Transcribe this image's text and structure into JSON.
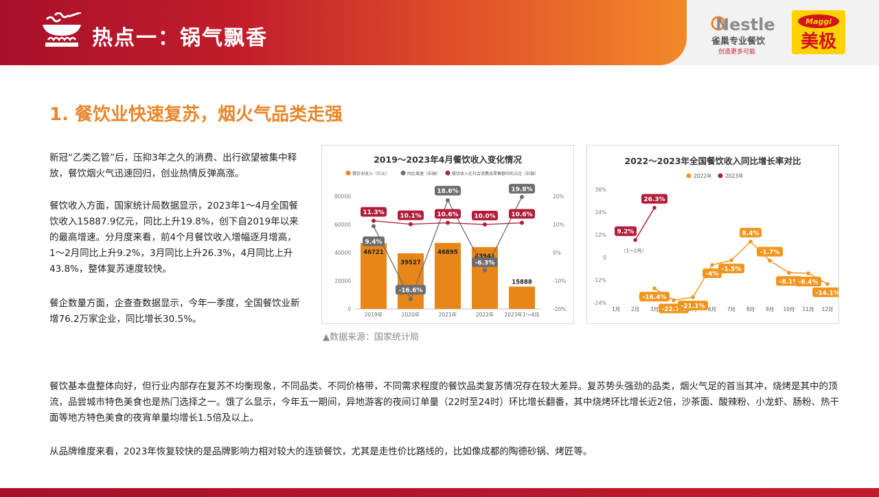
{
  "header": {
    "title": "热点一：锅气飘香",
    "nestle_logo": {
      "brand": "Nestle",
      "line1": "雀巢专业餐饮",
      "line2": "创造更多可能"
    },
    "maggi_logo": {
      "brand": "Maggi",
      "text": "美极"
    }
  },
  "section": {
    "heading": "1. 餐饮业快速复苏，烟火气品类走强"
  },
  "paragraphs": {
    "p1": "新冠“乙类乙管”后，压抑3年之久的消费、出行欲望被集中释放，餐饮烟火气迅速回归，创业热情反弹高涨。",
    "p2": "餐饮收入方面，国家统计局数据显示，2023年1～4月全国餐饮收入15887.9亿元，同比上升19.8%，创下自2019年以来的最高增速。分月度来看，前4个月餐饮收入增幅逐月增高，1～2月同比上升9.2%，3月同比上升26.3%，4月同比上升43.8%，整体复苏速度较快。",
    "p3": "餐企数量方面，企查查数据显示，今年一季度，全国餐饮业新增76.2万家企业，同比增长30.5%。",
    "p4": "餐饮基本盘整体向好，但行业内部存在复苏不均衡现象，不同品类、不同价格带，不同需求程度的餐饮品类复苏情况存在较大差异。复苏势头强劲的品类，烟火气足的首当其冲，烧烤是其中的顶流，品尝城市特色美食也是热门选择之一。饿了么显示，今年五一期间，异地游客的夜间订单量（22时至24时）环比增长翻番，其中烧烤环比增长近2倍，沙茶面、酸辣粉、小龙虾、肠粉、热干面等地方特色美食的夜宵单量均增长1.5倍及以上。",
    "p5": "从品牌维度来看，2023年恢复较快的是品牌影响力相对较大的连锁餐饮，尤其是走性价比路线的，比如像成都的陶德砂锅、烤匠等。"
  },
  "source_note": "▲数据来源：国家统计局",
  "chart_data": [
    {
      "type": "bar",
      "title": "2019～2023年4月餐饮收入变化情况",
      "categories": [
        "2019年",
        "2020年",
        "2021年",
        "2022年",
        "2023年1～4月"
      ],
      "legend": [
        "餐饮业收入（亿元）",
        "同比增速（右轴）",
        "餐饮收入在社会消费品零售额中的占比（右轴）"
      ],
      "legend_position": "top",
      "grid": false,
      "y_left": {
        "ticks": [
          "0",
          "20000",
          "40000",
          "60000",
          "80000"
        ],
        "range": [
          0,
          80000
        ]
      },
      "y_right": {
        "ticks": [
          "-20%",
          "-10%",
          "0%",
          "10%",
          "20%"
        ],
        "range": [
          -20,
          20
        ]
      },
      "series": [
        {
          "name": "餐饮业收入（亿元）",
          "values": [
            46721,
            39527,
            46895,
            43941,
            15888
          ],
          "labels": [
            "46721",
            "39527",
            "46895",
            "43941",
            "15888"
          ],
          "color": "#e8861a"
        },
        {
          "name": "同比增速（右轴）",
          "values": [
            9.4,
            -16.6,
            18.6,
            -6.3,
            19.8
          ],
          "labels": [
            "9.4%",
            "-16.6%",
            "18.6%",
            "-6.3%",
            "19.8%"
          ],
          "color": "#6d6d6d"
        },
        {
          "name": "餐饮收入在社会消费品零售额中的占比（右轴）",
          "values": [
            11.3,
            10.1,
            10.6,
            10.0,
            10.6
          ],
          "labels": [
            "11.3%",
            "10.1%",
            "10.6%",
            "10.0%",
            "10.6%"
          ],
          "color": "#b01d3a"
        }
      ]
    },
    {
      "type": "line",
      "title": "2022～2023年全国餐饮收入同比增长率对比",
      "categories": [
        "1月",
        "2月",
        "3月",
        "4月",
        "5月",
        "6月",
        "7月",
        "8月",
        "9月",
        "10月",
        "11月",
        "12月"
      ],
      "legend_position": "top",
      "grid": false,
      "y": {
        "ticks": [
          "-24%",
          "-12%",
          "0",
          "12%",
          "24%",
          "36%"
        ],
        "range": [
          -24,
          36
        ]
      },
      "series": [
        {
          "name": "2022年",
          "color": "#f0961f",
          "points": [
            {
              "x": 3,
              "y": -16.4,
              "label": "-16.4%"
            },
            {
              "x": 4,
              "y": -22.7,
              "label": "-22.7%"
            },
            {
              "x": 5,
              "y": -21.1,
              "label": "-21.1%"
            },
            {
              "x": 6,
              "y": -4,
              "label": "-4%"
            },
            {
              "x": 7,
              "y": -1.5,
              "label": "-1.5%"
            },
            {
              "x": 8,
              "y": 8.4,
              "label": "8.4%"
            },
            {
              "x": 9,
              "y": -1.7,
              "label": "-1.7%"
            },
            {
              "x": 10,
              "y": -8.1,
              "label": "-8.1%"
            },
            {
              "x": 11,
              "y": -8.4,
              "label": "-8.4%"
            },
            {
              "x": 12,
              "y": -14.1,
              "label": "-14.1%"
            }
          ]
        },
        {
          "name": "2023年",
          "color": "#b01d3a",
          "points": [
            {
              "x": 2,
              "y": 9.2,
              "label": "9.2%"
            },
            {
              "x": 3,
              "y": 26.3,
              "label": "26.3%"
            }
          ]
        }
      ],
      "annotation": "（1～2月）"
    }
  ]
}
